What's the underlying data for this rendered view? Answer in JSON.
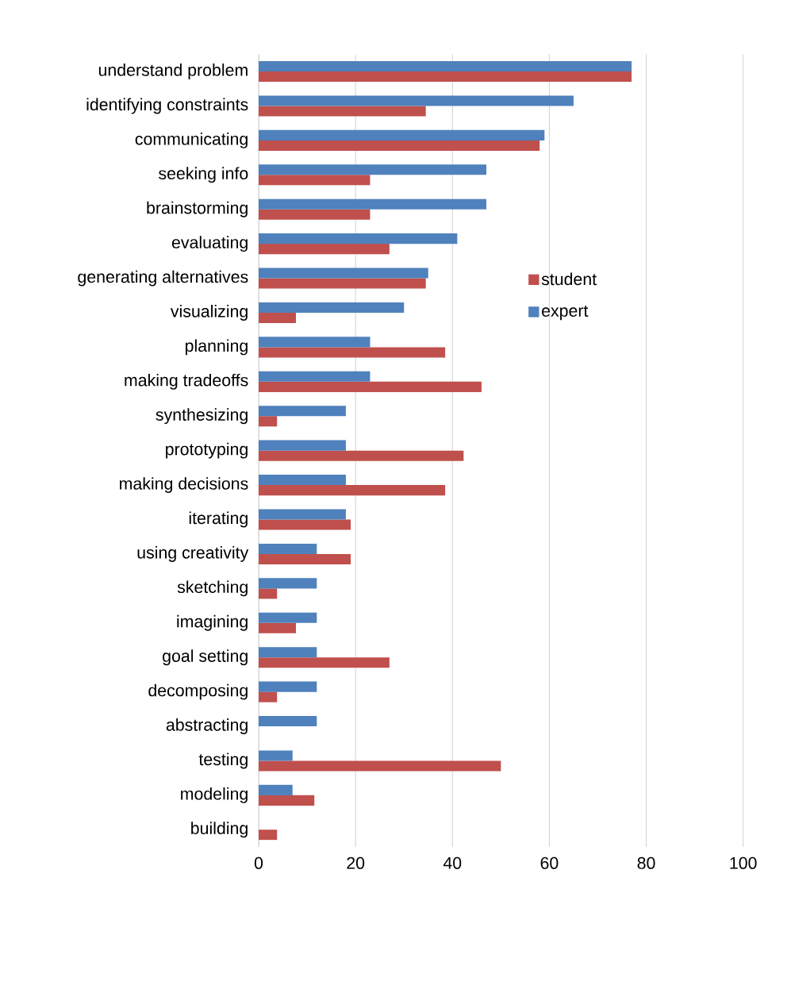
{
  "chart_data": {
    "type": "bar",
    "orientation": "horizontal",
    "categories": [
      "understand problem",
      "identifying constraints",
      "communicating",
      "seeking info",
      "brainstorming",
      "evaluating",
      "generating alternatives",
      "visualizing",
      "planning",
      "making tradeoffs",
      "synthesizing",
      "prototyping",
      "making decisions",
      "iterating",
      "using creativity",
      "sketching",
      "imagining",
      "goal setting",
      "decomposing",
      "abstracting",
      "testing",
      "modeling",
      "building"
    ],
    "series": [
      {
        "name": "student",
        "color": "#c0504d",
        "values": [
          77,
          34.5,
          58,
          23,
          23,
          27,
          34.5,
          7.7,
          38.5,
          46,
          3.8,
          42.3,
          38.5,
          19,
          19,
          3.8,
          7.7,
          27,
          3.8,
          null,
          50,
          11.5,
          3.8
        ]
      },
      {
        "name": "expert",
        "color": "#4f81bd",
        "values": [
          77,
          65,
          59,
          47,
          47,
          41,
          35,
          30,
          23,
          23,
          18,
          18,
          18,
          18,
          12,
          12,
          12,
          12,
          12,
          12,
          7,
          7,
          null
        ]
      }
    ],
    "xlim": [
      0,
      100
    ],
    "xticks": [
      0,
      20,
      40,
      60,
      80,
      100
    ],
    "grid": "x",
    "legend": "right"
  }
}
